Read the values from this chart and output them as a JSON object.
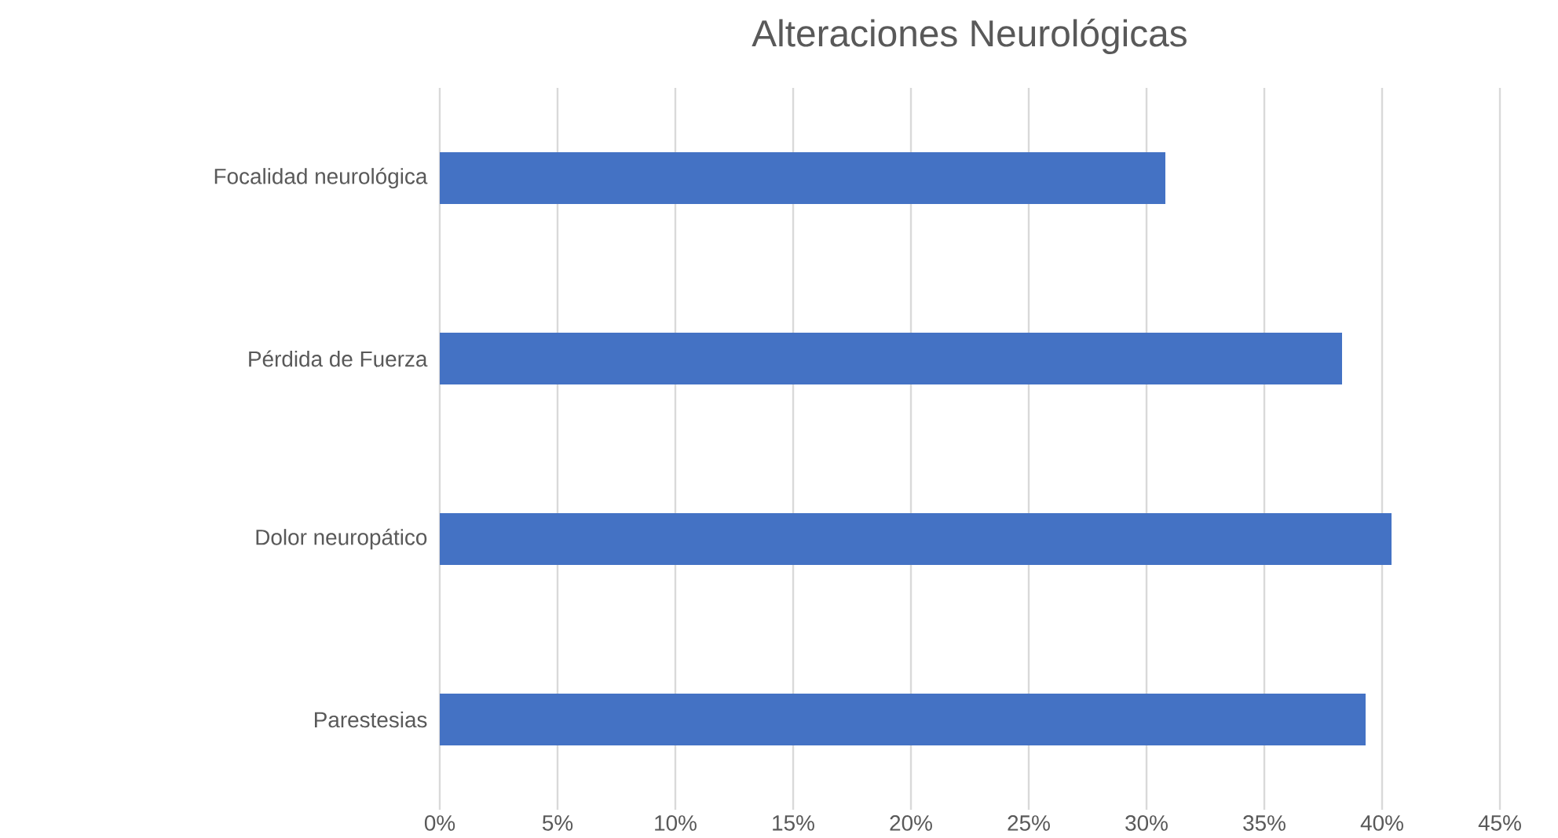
{
  "chart_data": {
    "type": "bar",
    "orientation": "horizontal",
    "title": "Alteraciones Neurológicas",
    "categories": [
      "Focalidad neurológica",
      "Pérdida de Fuerza",
      "Dolor neuropático",
      "Parestesias"
    ],
    "values": [
      30.8,
      38.3,
      40.4,
      39.3
    ],
    "color": "#4472c4",
    "xlim": [
      0,
      45
    ],
    "xticks": [
      {
        "value": 0,
        "label": "0%"
      },
      {
        "value": 5,
        "label": "5%"
      },
      {
        "value": 10,
        "label": "10%"
      },
      {
        "value": 15,
        "label": "15%"
      },
      {
        "value": 20,
        "label": "20%"
      },
      {
        "value": 25,
        "label": "25%"
      },
      {
        "value": 30,
        "label": "30%"
      },
      {
        "value": 35,
        "label": "35%"
      },
      {
        "value": 40,
        "label": "40%"
      },
      {
        "value": 45,
        "label": "45%"
      }
    ],
    "grid": "x"
  }
}
